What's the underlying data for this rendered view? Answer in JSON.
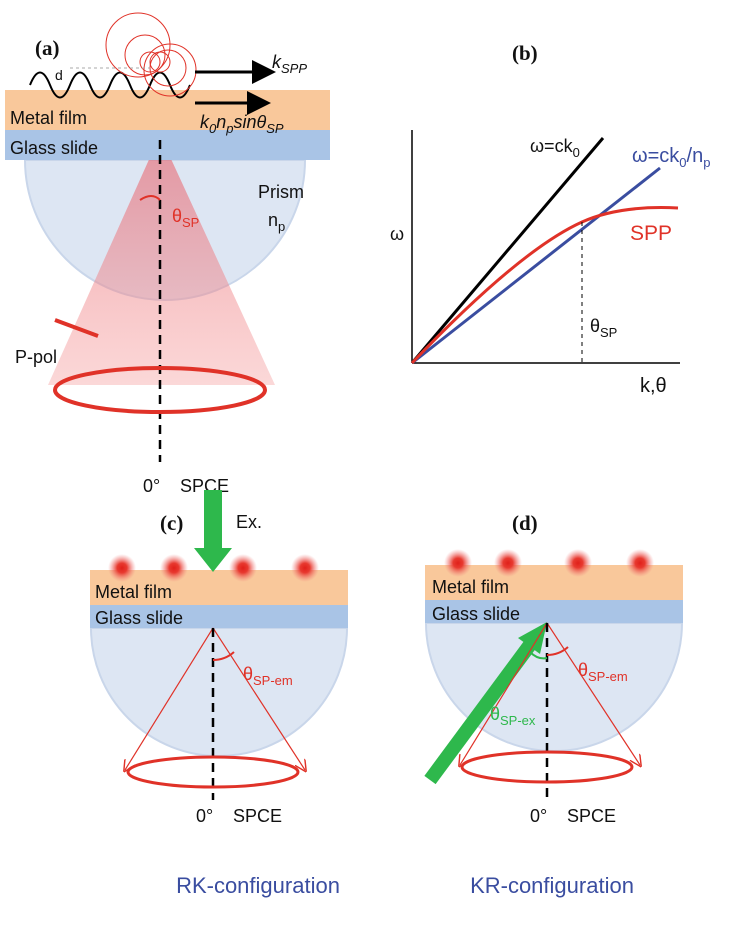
{
  "panel_a": {
    "label": "(a)",
    "period": "d",
    "spp_wavevector": {
      "base": "k",
      "sub": "SPP"
    },
    "metal": "Metal film",
    "incident_wavevector": [
      {
        "base": "k",
        "sub": "0"
      },
      {
        "base": "n",
        "sub": "p"
      },
      {
        "base": "sinθ",
        "sub": "SP"
      }
    ],
    "glass": "Glass slide",
    "prism": "Prism",
    "prism_index": {
      "base": "n",
      "sub": "p"
    },
    "angle": {
      "base": "θ",
      "sub": "SP"
    },
    "polarization": "P-pol",
    "zero_angle": "0°",
    "spce": "SPCE"
  },
  "panel_b": {
    "label": "(b)",
    "light_line": {
      "base": "ω=ck",
      "sub": "0"
    },
    "prism_line": [
      {
        "base": "ω=ck",
        "sub": "0"
      },
      {
        "base": "/n",
        "sub": "p"
      }
    ],
    "y_label": "ω",
    "spp": "SPP",
    "angle": {
      "base": "θ",
      "sub": "SP"
    },
    "x_label": "k,θ"
  },
  "panel_c": {
    "label": "(c)",
    "excitation": "Ex.",
    "metal": "Metal film",
    "glass": "Glass slide",
    "angle": {
      "base": "θ",
      "sub": "SP-em"
    },
    "zero_angle": "0°",
    "spce": "SPCE",
    "caption": "RK-configuration"
  },
  "panel_d": {
    "label": "(d)",
    "metal": "Metal film",
    "glass": "Glass slide",
    "emission_angle": {
      "base": "θ",
      "sub": "SP-em"
    },
    "excitation_angle": {
      "base": "θ",
      "sub": "SP-ex"
    },
    "zero_angle": "0°",
    "spce": "SPCE",
    "caption": "KR-configuration"
  }
}
